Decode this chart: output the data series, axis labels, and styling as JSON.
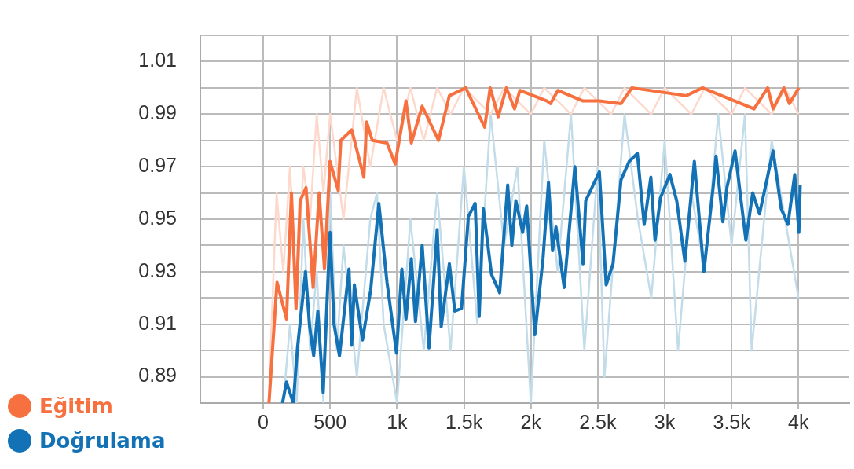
{
  "chart_data": {
    "type": "line",
    "legend": "bottom left",
    "grid": true,
    "marker": "none",
    "line_style": "solid",
    "xlim": [
      -470,
      4380
    ],
    "xticks": [
      0,
      500,
      {
        "value": 1000,
        "label": "1k"
      },
      {
        "value": 1500,
        "label": "1.5k"
      },
      {
        "value": 2000,
        "label": "2k"
      },
      {
        "value": 2500,
        "label": "2.5k"
      },
      {
        "value": 3000,
        "label": "3k"
      },
      {
        "value": 3500,
        "label": "3.5k"
      },
      {
        "value": 4000,
        "label": "4k"
      }
    ],
    "ylim": [
      0.88,
      1.02
    ],
    "yticks": [
      {
        "value": 0.88,
        "label": null
      },
      0.89,
      {
        "value": 0.9,
        "label": null
      },
      0.91,
      {
        "value": 0.92,
        "label": null
      },
      0.93,
      {
        "value": 0.94,
        "label": null
      },
      0.95,
      {
        "value": 0.96,
        "label": null
      },
      0.97,
      {
        "value": 0.98,
        "label": null
      },
      0.99,
      {
        "value": 1.0,
        "label": null
      },
      1.01,
      {
        "value": 1.02,
        "label": null
      }
    ],
    "series": [
      {
        "name": "Eğitim",
        "color": "#f7703f",
        "x": [
          43,
          103,
          174,
          211,
          245,
          276,
          320,
          373,
          418,
          458,
          499,
          560,
          580,
          661,
          752,
          773,
          815,
          925,
          986,
          1067,
          1107,
          1188,
          1310,
          1391,
          1513,
          1655,
          1696,
          1756,
          1817,
          1878,
          1918,
          2121,
          2147,
          2202,
          2390,
          2512,
          2674,
          2755,
          3161,
          3283,
          3668,
          3770,
          3810,
          3891,
          3932,
          4003
        ],
        "values": [
          0.88,
          0.926,
          0.912,
          0.96,
          0.916,
          0.957,
          0.962,
          0.924,
          0.96,
          0.931,
          0.972,
          0.961,
          0.98,
          0.984,
          0.966,
          0.987,
          0.98,
          0.979,
          0.971,
          0.995,
          0.979,
          0.993,
          0.98,
          0.997,
          1.0,
          0.985,
          1.0,
          0.989,
          1.0,
          0.992,
          0.999,
          0.995,
          0.994,
          0.999,
          0.995,
          0.995,
          0.994,
          1.0,
          0.997,
          1.0,
          0.992,
          1.0,
          0.992,
          1.0,
          0.994,
          1.0
        ]
      },
      {
        "name": "Doğrulama",
        "color": "#1372b5",
        "x": [
          144,
          174,
          225,
          256,
          316,
          347,
          377,
          408,
          448,
          499,
          529,
          570,
          641,
          661,
          681,
          742,
          803,
          864,
          925,
          996,
          1036,
          1067,
          1107,
          1138,
          1188,
          1239,
          1300,
          1330,
          1391,
          1432,
          1482,
          1533,
          1584,
          1614,
          1645,
          1706,
          1767,
          1827,
          1858,
          1888,
          1939,
          1969,
          2030,
          2091,
          2132,
          2162,
          2188,
          2249,
          2329,
          2390,
          2410,
          2512,
          2563,
          2614,
          2674,
          2735,
          2796,
          2847,
          2897,
          2928,
          2968,
          3039,
          3090,
          3151,
          3222,
          3293,
          3364,
          3384,
          3435,
          3465,
          3526,
          3607,
          3658,
          3709,
          3810,
          3871,
          3921,
          3972,
          4003,
          4013
        ],
        "values": [
          0.88,
          0.888,
          0.88,
          0.901,
          0.93,
          0.909,
          0.898,
          0.915,
          0.884,
          0.945,
          0.91,
          0.898,
          0.931,
          0.902,
          0.925,
          0.904,
          0.923,
          0.956,
          0.926,
          0.899,
          0.931,
          0.912,
          0.935,
          0.911,
          0.94,
          0.901,
          0.946,
          0.909,
          0.933,
          0.915,
          0.916,
          0.951,
          0.956,
          0.913,
          0.954,
          0.929,
          0.922,
          0.963,
          0.94,
          0.957,
          0.945,
          0.955,
          0.906,
          0.935,
          0.964,
          0.938,
          0.947,
          0.924,
          0.97,
          0.933,
          0.957,
          0.968,
          0.925,
          0.933,
          0.965,
          0.972,
          0.975,
          0.948,
          0.966,
          0.942,
          0.958,
          0.967,
          0.957,
          0.934,
          0.972,
          0.93,
          0.963,
          0.974,
          0.949,
          0.962,
          0.976,
          0.942,
          0.96,
          0.952,
          0.976,
          0.954,
          0.948,
          0.967,
          0.945,
          0.963
        ]
      },
      {
        "color": "#fcd9cc",
        "x": [
          40,
          100,
          150,
          200,
          250,
          300,
          350,
          400,
          450,
          500,
          600,
          700,
          800,
          900,
          1000,
          1100,
          1200,
          1300,
          1400,
          1500,
          1700,
          1800,
          2000,
          2100,
          2300,
          2400,
          2600,
          2700,
          2900,
          3000,
          3200,
          3300,
          3500,
          3600,
          3800,
          3900,
          4000
        ],
        "values": [
          0.88,
          0.96,
          0.93,
          0.97,
          0.92,
          0.97,
          0.95,
          0.99,
          0.96,
          0.99,
          0.95,
          1.0,
          0.97,
          1.0,
          0.98,
          1.0,
          0.98,
          1.0,
          0.99,
          1.0,
          0.99,
          1.0,
          0.99,
          1.0,
          0.99,
          1.0,
          0.99,
          1.0,
          0.99,
          1.0,
          0.99,
          1.0,
          0.99,
          1.0,
          0.99,
          1.0,
          0.99
        ]
      },
      {
        "color": "#c3dcea",
        "x": [
          150,
          200,
          250,
          300,
          350,
          400,
          450,
          500,
          550,
          600,
          700,
          800,
          850,
          900,
          1000,
          1100,
          1200,
          1300,
          1400,
          1500,
          1600,
          1700,
          1800,
          1900,
          2000,
          2100,
          2200,
          2300,
          2400,
          2500,
          2550,
          2700,
          2800,
          2900,
          3000,
          3100,
          3200,
          3300,
          3400,
          3500,
          3600,
          3650,
          3800,
          3900,
          4000
        ],
        "values": [
          0.88,
          0.91,
          0.88,
          0.95,
          0.9,
          0.93,
          0.88,
          0.96,
          0.9,
          0.94,
          0.89,
          0.95,
          0.96,
          0.91,
          0.88,
          0.95,
          0.9,
          0.96,
          0.9,
          0.97,
          0.91,
          0.99,
          0.94,
          0.97,
          0.88,
          0.98,
          0.93,
          0.99,
          0.9,
          0.97,
          0.89,
          0.99,
          0.95,
          0.92,
          0.98,
          0.9,
          0.96,
          0.93,
          0.99,
          0.94,
          0.99,
          0.9,
          0.98,
          0.95,
          0.92
        ]
      }
    ]
  }
}
